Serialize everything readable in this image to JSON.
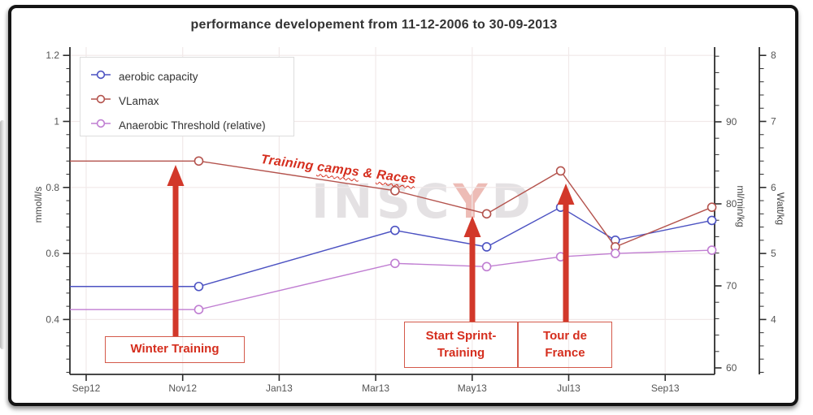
{
  "title": "performance developement from 11-12-2006 to 30-09-2013",
  "watermark": {
    "part1": "INSC",
    "part2": "Y",
    "part3": "D"
  },
  "legend": {
    "items": [
      {
        "label": "aerobic capacity",
        "color": "#4c52c2"
      },
      {
        "label": "VLamax",
        "color": "#b4534d"
      },
      {
        "label": "Anaerobic Threshold (relative)",
        "color": "#c07ed2"
      }
    ]
  },
  "annotations": {
    "winter": {
      "label": "Winter Training"
    },
    "sprint": {
      "line1": "Start Sprint-",
      "line2": "Training"
    },
    "tour": {
      "line1": "Tour de",
      "line2": "France"
    },
    "camps": {
      "parts": [
        "Training ",
        "camps",
        " & ",
        "Races"
      ]
    },
    "arrow_color": "#d2382a",
    "text_color": "#d52e1e",
    "border_color": "#d4594a"
  },
  "chart_data": {
    "type": "line",
    "title": "performance developement from 11-12-2006 to 30-09-2013",
    "x_tick_labels": [
      "Sep12",
      "Nov12",
      "Jan13",
      "Mar13",
      "May13",
      "Jul13",
      "Sep13"
    ],
    "x_dates": [
      "2012-11-11",
      "2013-03-13",
      "2013-05-10",
      "2013-06-26",
      "2013-07-30",
      "2013-09-30"
    ],
    "series": [
      {
        "name": "aerobic capacity",
        "color": "#4c52c2",
        "values": [
          0.5,
          0.67,
          0.62,
          0.74,
          0.64,
          0.7
        ]
      },
      {
        "name": "VLamax",
        "color": "#b4534d",
        "values": [
          0.88,
          0.79,
          0.72,
          0.85,
          0.62,
          0.74
        ]
      },
      {
        "name": "Anaerobic Threshold (relative)",
        "color": "#c07ed2",
        "values": [
          0.43,
          0.57,
          0.56,
          0.59,
          0.6,
          0.61
        ]
      }
    ],
    "axes": {
      "left": {
        "label": "mmol/l/s",
        "ticks": [
          1.2,
          1,
          0.8,
          0.6,
          0.4
        ],
        "range": [
          0.24,
          1.26
        ]
      },
      "right_inner": {
        "label": "ml/min/kg",
        "ticks": [
          90,
          80,
          70,
          60
        ],
        "range": [
          59,
          99
        ]
      },
      "right_outer": {
        "label": "Watt/kg",
        "ticks": [
          8,
          7,
          6,
          5,
          4
        ],
        "range": [
          3.2,
          8.1
        ]
      },
      "bottom": {
        "label": "",
        "ticks": [
          "Sep12",
          "Nov12",
          "Jan13",
          "Mar13",
          "May13",
          "Jul13",
          "Sep13"
        ]
      }
    },
    "grid": true,
    "legend_position": "top-left",
    "lead_in_from_left_edge": true
  }
}
